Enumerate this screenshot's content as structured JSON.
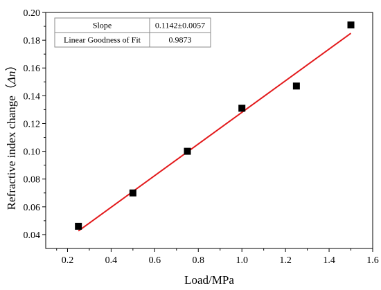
{
  "chart_data": {
    "type": "scatter",
    "xlabel": "Load/MPa",
    "ylabel_prefix": "Refractive index change（",
    "ylabel_symbol": "Δn",
    "ylabel_suffix": "）",
    "xlim": [
      0.1,
      1.6
    ],
    "ylim": [
      0.03,
      0.2
    ],
    "xticks": [
      0.2,
      0.4,
      0.6,
      0.8,
      1.0,
      1.2,
      1.4,
      1.6
    ],
    "xtick_labels": [
      "0.2",
      "0.4",
      "0.6",
      "0.8",
      "1.0",
      "1.2",
      "1.4",
      "1.6"
    ],
    "yticks": [
      0.04,
      0.06,
      0.08,
      0.1,
      0.12,
      0.14,
      0.16,
      0.18,
      0.2
    ],
    "ytick_labels": [
      "0.04",
      "0.06",
      "0.08",
      "0.10",
      "0.12",
      "0.14",
      "0.16",
      "0.18",
      "0.20"
    ],
    "grid": false,
    "series": [
      {
        "marker": "square",
        "color": "#000000",
        "x": [
          0.25,
          0.5,
          0.75,
          1.0,
          1.25,
          1.5
        ],
        "y": [
          0.046,
          0.07,
          0.1,
          0.131,
          0.147,
          0.191
        ]
      }
    ],
    "fit_line": {
      "color": "#e31a1c",
      "x": [
        0.25,
        1.5
      ],
      "y": [
        0.0426,
        0.185
      ]
    },
    "fit_table": {
      "rows": [
        {
          "label": "Slope",
          "value": "0.1142±0.0057"
        },
        {
          "label": "Linear Goodness of Fit",
          "value": "0.9873"
        }
      ]
    }
  }
}
